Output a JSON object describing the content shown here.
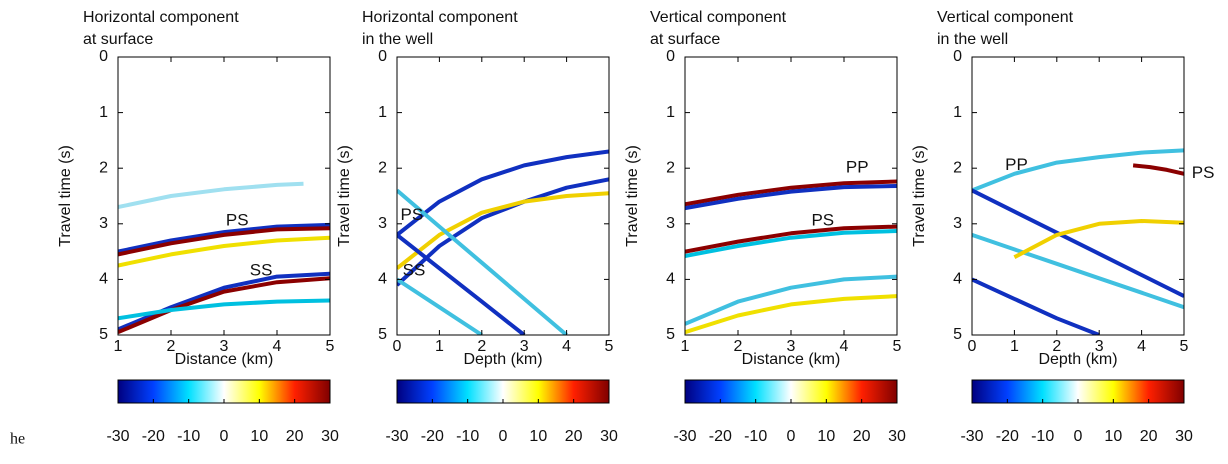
{
  "caption": "he",
  "chart_data": [
    {
      "type": "seismic",
      "title": [
        "Horizontal component",
        "at surface"
      ],
      "xlabel": "Distance (km)",
      "ylabel": "Travel time (s)",
      "xlim": [
        1,
        5
      ],
      "xticks": [
        1,
        2,
        3,
        4,
        5
      ],
      "ylim": [
        5,
        0
      ],
      "yticks": [
        0,
        1,
        2,
        3,
        4,
        5
      ],
      "events": [
        {
          "x": [
            1,
            2,
            3,
            4,
            4.5
          ],
          "y": [
            2.7,
            2.5,
            2.38,
            2.3,
            2.28
          ],
          "color": "#a0e0f0"
        },
        {
          "x": [
            1,
            2,
            3,
            4,
            5
          ],
          "y": [
            3.5,
            3.3,
            3.15,
            3.05,
            3.02
          ],
          "color": "#1030c0"
        },
        {
          "x": [
            1,
            2,
            3,
            4,
            5
          ],
          "y": [
            3.55,
            3.35,
            3.2,
            3.1,
            3.08
          ],
          "color": "#8b0000"
        },
        {
          "x": [
            1,
            2,
            3,
            4,
            5
          ],
          "y": [
            3.75,
            3.55,
            3.4,
            3.3,
            3.25
          ],
          "color": "#f0e000"
        },
        {
          "x": [
            1,
            2,
            3,
            4,
            5
          ],
          "y": [
            4.9,
            4.5,
            4.15,
            3.95,
            3.9
          ],
          "color": "#1030c0"
        },
        {
          "x": [
            1,
            2,
            3,
            4,
            5
          ],
          "y": [
            4.95,
            4.55,
            4.22,
            4.05,
            3.98
          ],
          "color": "#8b0000"
        },
        {
          "x": [
            1,
            2,
            3,
            4,
            5
          ],
          "y": [
            4.7,
            4.55,
            4.45,
            4.4,
            4.38
          ],
          "color": "#00c0e0"
        }
      ],
      "annotations": [
        {
          "text": "PS",
          "x": 3.25,
          "y": 2.95
        },
        {
          "text": "SS",
          "x": 3.7,
          "y": 3.85
        }
      ],
      "colorbar": {
        "lim": [
          -30,
          30
        ],
        "ticks": [
          -30,
          -20,
          -10,
          0,
          10,
          20,
          30
        ],
        "colors": [
          "#000080",
          "#0040ff",
          "#00e0ff",
          "#ffffff",
          "#ffff00",
          "#ff2000",
          "#800000"
        ]
      }
    },
    {
      "type": "seismic",
      "title": [
        "Horizontal component",
        "in the well"
      ],
      "xlabel": "Depth (km)",
      "ylabel": "Travel time (s)",
      "xlim": [
        0,
        5
      ],
      "xticks": [
        0,
        1,
        2,
        3,
        4,
        5
      ],
      "ylim": [
        5,
        0
      ],
      "yticks": [
        0,
        1,
        2,
        3,
        4,
        5
      ],
      "events": [
        {
          "x": [
            0,
            1,
            2,
            3,
            4,
            5
          ],
          "y": [
            3.2,
            2.6,
            2.2,
            1.95,
            1.8,
            1.7
          ],
          "color": "#1030c0"
        },
        {
          "x": [
            0,
            1,
            2,
            3,
            4,
            5
          ],
          "y": [
            4.1,
            3.4,
            2.9,
            2.6,
            2.35,
            2.2
          ],
          "color": "#1030c0"
        },
        {
          "x": [
            0,
            1,
            2,
            3,
            4,
            5
          ],
          "y": [
            3.8,
            3.2,
            2.8,
            2.6,
            2.5,
            2.45
          ],
          "color": "#f0d000"
        },
        {
          "x": [
            0,
            1,
            2,
            3,
            4
          ],
          "y": [
            2.4,
            3.05,
            3.7,
            4.35,
            5
          ],
          "color": "#40c0e0"
        },
        {
          "x": [
            0,
            1,
            2,
            3
          ],
          "y": [
            3.2,
            3.8,
            4.4,
            5
          ],
          "color": "#1030c0"
        },
        {
          "x": [
            0,
            1,
            2
          ],
          "y": [
            4.0,
            4.5,
            5
          ],
          "color": "#40c0e0"
        }
      ],
      "annotations": [
        {
          "text": "PS",
          "x": 0.35,
          "y": 2.85
        },
        {
          "text": "SS",
          "x": 0.4,
          "y": 3.85
        }
      ],
      "colorbar": {
        "lim": [
          -30,
          30
        ],
        "ticks": [
          -30,
          -20,
          -10,
          0,
          10,
          20,
          30
        ],
        "colors": [
          "#000080",
          "#0040ff",
          "#00e0ff",
          "#ffffff",
          "#ffff00",
          "#ff2000",
          "#800000"
        ]
      }
    },
    {
      "type": "seismic",
      "title": [
        "Vertical component",
        "at surface"
      ],
      "xlabel": "Distance (km)",
      "ylabel": "Travel time (s)",
      "xlim": [
        1,
        5
      ],
      "xticks": [
        1,
        2,
        3,
        4,
        5
      ],
      "ylim": [
        5,
        0
      ],
      "yticks": [
        0,
        1,
        2,
        3,
        4,
        5
      ],
      "events": [
        {
          "x": [
            1,
            2,
            3,
            4,
            5
          ],
          "y": [
            2.65,
            2.48,
            2.35,
            2.27,
            2.24
          ],
          "color": "#8b0000"
        },
        {
          "x": [
            1,
            2,
            3,
            4,
            5
          ],
          "y": [
            2.72,
            2.55,
            2.42,
            2.34,
            2.32
          ],
          "color": "#1030c0"
        },
        {
          "x": [
            1,
            2,
            3,
            4,
            5
          ],
          "y": [
            3.5,
            3.32,
            3.17,
            3.08,
            3.05
          ],
          "color": "#8b0000"
        },
        {
          "x": [
            1,
            2,
            3,
            4,
            5
          ],
          "y": [
            3.58,
            3.4,
            3.25,
            3.16,
            3.13
          ],
          "color": "#00c0e0"
        },
        {
          "x": [
            1,
            2,
            3,
            4,
            5
          ],
          "y": [
            4.8,
            4.4,
            4.15,
            4.0,
            3.95
          ],
          "color": "#40c0e0"
        },
        {
          "x": [
            1,
            2,
            3,
            4,
            5
          ],
          "y": [
            4.95,
            4.65,
            4.45,
            4.35,
            4.3
          ],
          "color": "#f0e000"
        }
      ],
      "annotations": [
        {
          "text": "PP",
          "x": 4.25,
          "y": 2.0
        },
        {
          "text": "PS",
          "x": 3.6,
          "y": 2.95
        }
      ],
      "colorbar": {
        "lim": [
          -30,
          30
        ],
        "ticks": [
          -30,
          -20,
          -10,
          0,
          10,
          20,
          30
        ],
        "colors": [
          "#000080",
          "#0040ff",
          "#00e0ff",
          "#ffffff",
          "#ffff00",
          "#ff2000",
          "#800000"
        ]
      }
    },
    {
      "type": "seismic",
      "title": [
        "Vertical component",
        "in the well"
      ],
      "xlabel": "Depth (km)",
      "ylabel": "Travel time (s)",
      "xlim": [
        0,
        5
      ],
      "xticks": [
        0,
        1,
        2,
        3,
        4,
        5
      ],
      "ylim": [
        5,
        0
      ],
      "yticks": [
        0,
        1,
        2,
        3,
        4,
        5
      ],
      "events": [
        {
          "x": [
            0,
            1,
            2,
            3,
            4,
            5
          ],
          "y": [
            2.4,
            2.1,
            1.9,
            1.8,
            1.72,
            1.68
          ],
          "color": "#40c0e0"
        },
        {
          "x": [
            3.8,
            4.2,
            4.6,
            5
          ],
          "y": [
            1.95,
            1.98,
            2.03,
            2.1
          ],
          "color": "#8b0000"
        },
        {
          "x": [
            0,
            1,
            2,
            3,
            4,
            5
          ],
          "y": [
            2.4,
            2.78,
            3.16,
            3.54,
            3.92,
            4.3
          ],
          "color": "#1030c0"
        },
        {
          "x": [
            0,
            1,
            2,
            3,
            4,
            5
          ],
          "y": [
            3.2,
            3.46,
            3.72,
            3.98,
            4.24,
            4.5
          ],
          "color": "#40c0e0"
        },
        {
          "x": [
            0,
            1,
            2,
            3
          ],
          "y": [
            4.0,
            4.35,
            4.7,
            5
          ],
          "color": "#1030c0"
        },
        {
          "x": [
            1,
            2,
            3,
            4,
            5
          ],
          "y": [
            3.6,
            3.2,
            3.0,
            2.95,
            2.98
          ],
          "color": "#f0d000"
        }
      ],
      "annotations": [
        {
          "text": "PP",
          "x": 1.05,
          "y": 1.95
        },
        {
          "text": "PS",
          "x": 5.45,
          "y": 2.1
        }
      ],
      "colorbar": {
        "lim": [
          -30,
          30
        ],
        "ticks": [
          -30,
          -20,
          -10,
          0,
          10,
          20,
          30
        ],
        "colors": [
          "#000080",
          "#0040ff",
          "#00e0ff",
          "#ffffff",
          "#ffff00",
          "#ff2000",
          "#800000"
        ]
      }
    }
  ]
}
